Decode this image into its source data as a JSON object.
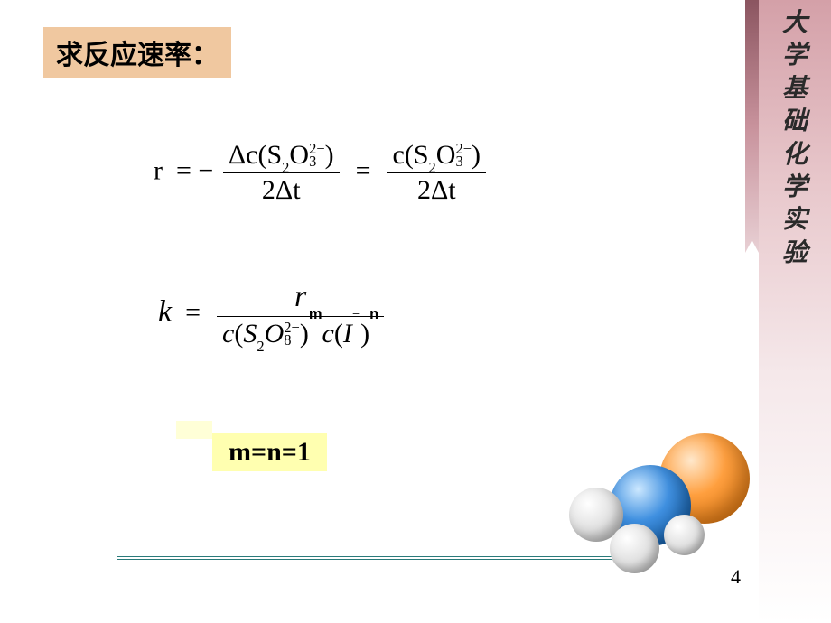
{
  "slide": {
    "title": "求反应速率：",
    "page_number": "4",
    "colors": {
      "title_bg": "#f0c8a0",
      "highlight_bg": "#ffffb0",
      "rule_color": "#2a7a7a",
      "strip_top": "#d4a0a8",
      "strip_dark": "#8b5560"
    }
  },
  "sidebar_chars": [
    "大",
    "学",
    "基",
    "础",
    "化",
    "学",
    "实",
    "验"
  ],
  "eq1": {
    "lhs": "r",
    "minus": "−",
    "num1_delta": "Δ",
    "num1_c": "c(S",
    "num1_s_sub": "2",
    "num1_O": "O",
    "num1_o_sup": "2−",
    "num1_o_sub": "3",
    "num1_close": ")",
    "den1": "2Δt",
    "eq_mid": "=",
    "num2_c": "c(S",
    "num2_s_sub": "2",
    "num2_O": "O",
    "num2_o_sup": "2−",
    "num2_o_sub": "3",
    "num2_close": ")",
    "den2": "2Δt"
  },
  "eq2": {
    "lhs": "k",
    "num": "r",
    "den_c1": "c",
    "den_p1": "(",
    "den_S": "S",
    "den_s_sub": "2",
    "den_O": "O",
    "den_o_sup": "2−",
    "den_o_sub": "8",
    "den_p2": ")",
    "den_exp_m": "m",
    "den_c2": "c",
    "den_p3": "(",
    "den_I": "I",
    "den_I_sup": "−",
    "den_p4": ")",
    "den_exp_n": "n"
  },
  "mn": "m=n=1"
}
